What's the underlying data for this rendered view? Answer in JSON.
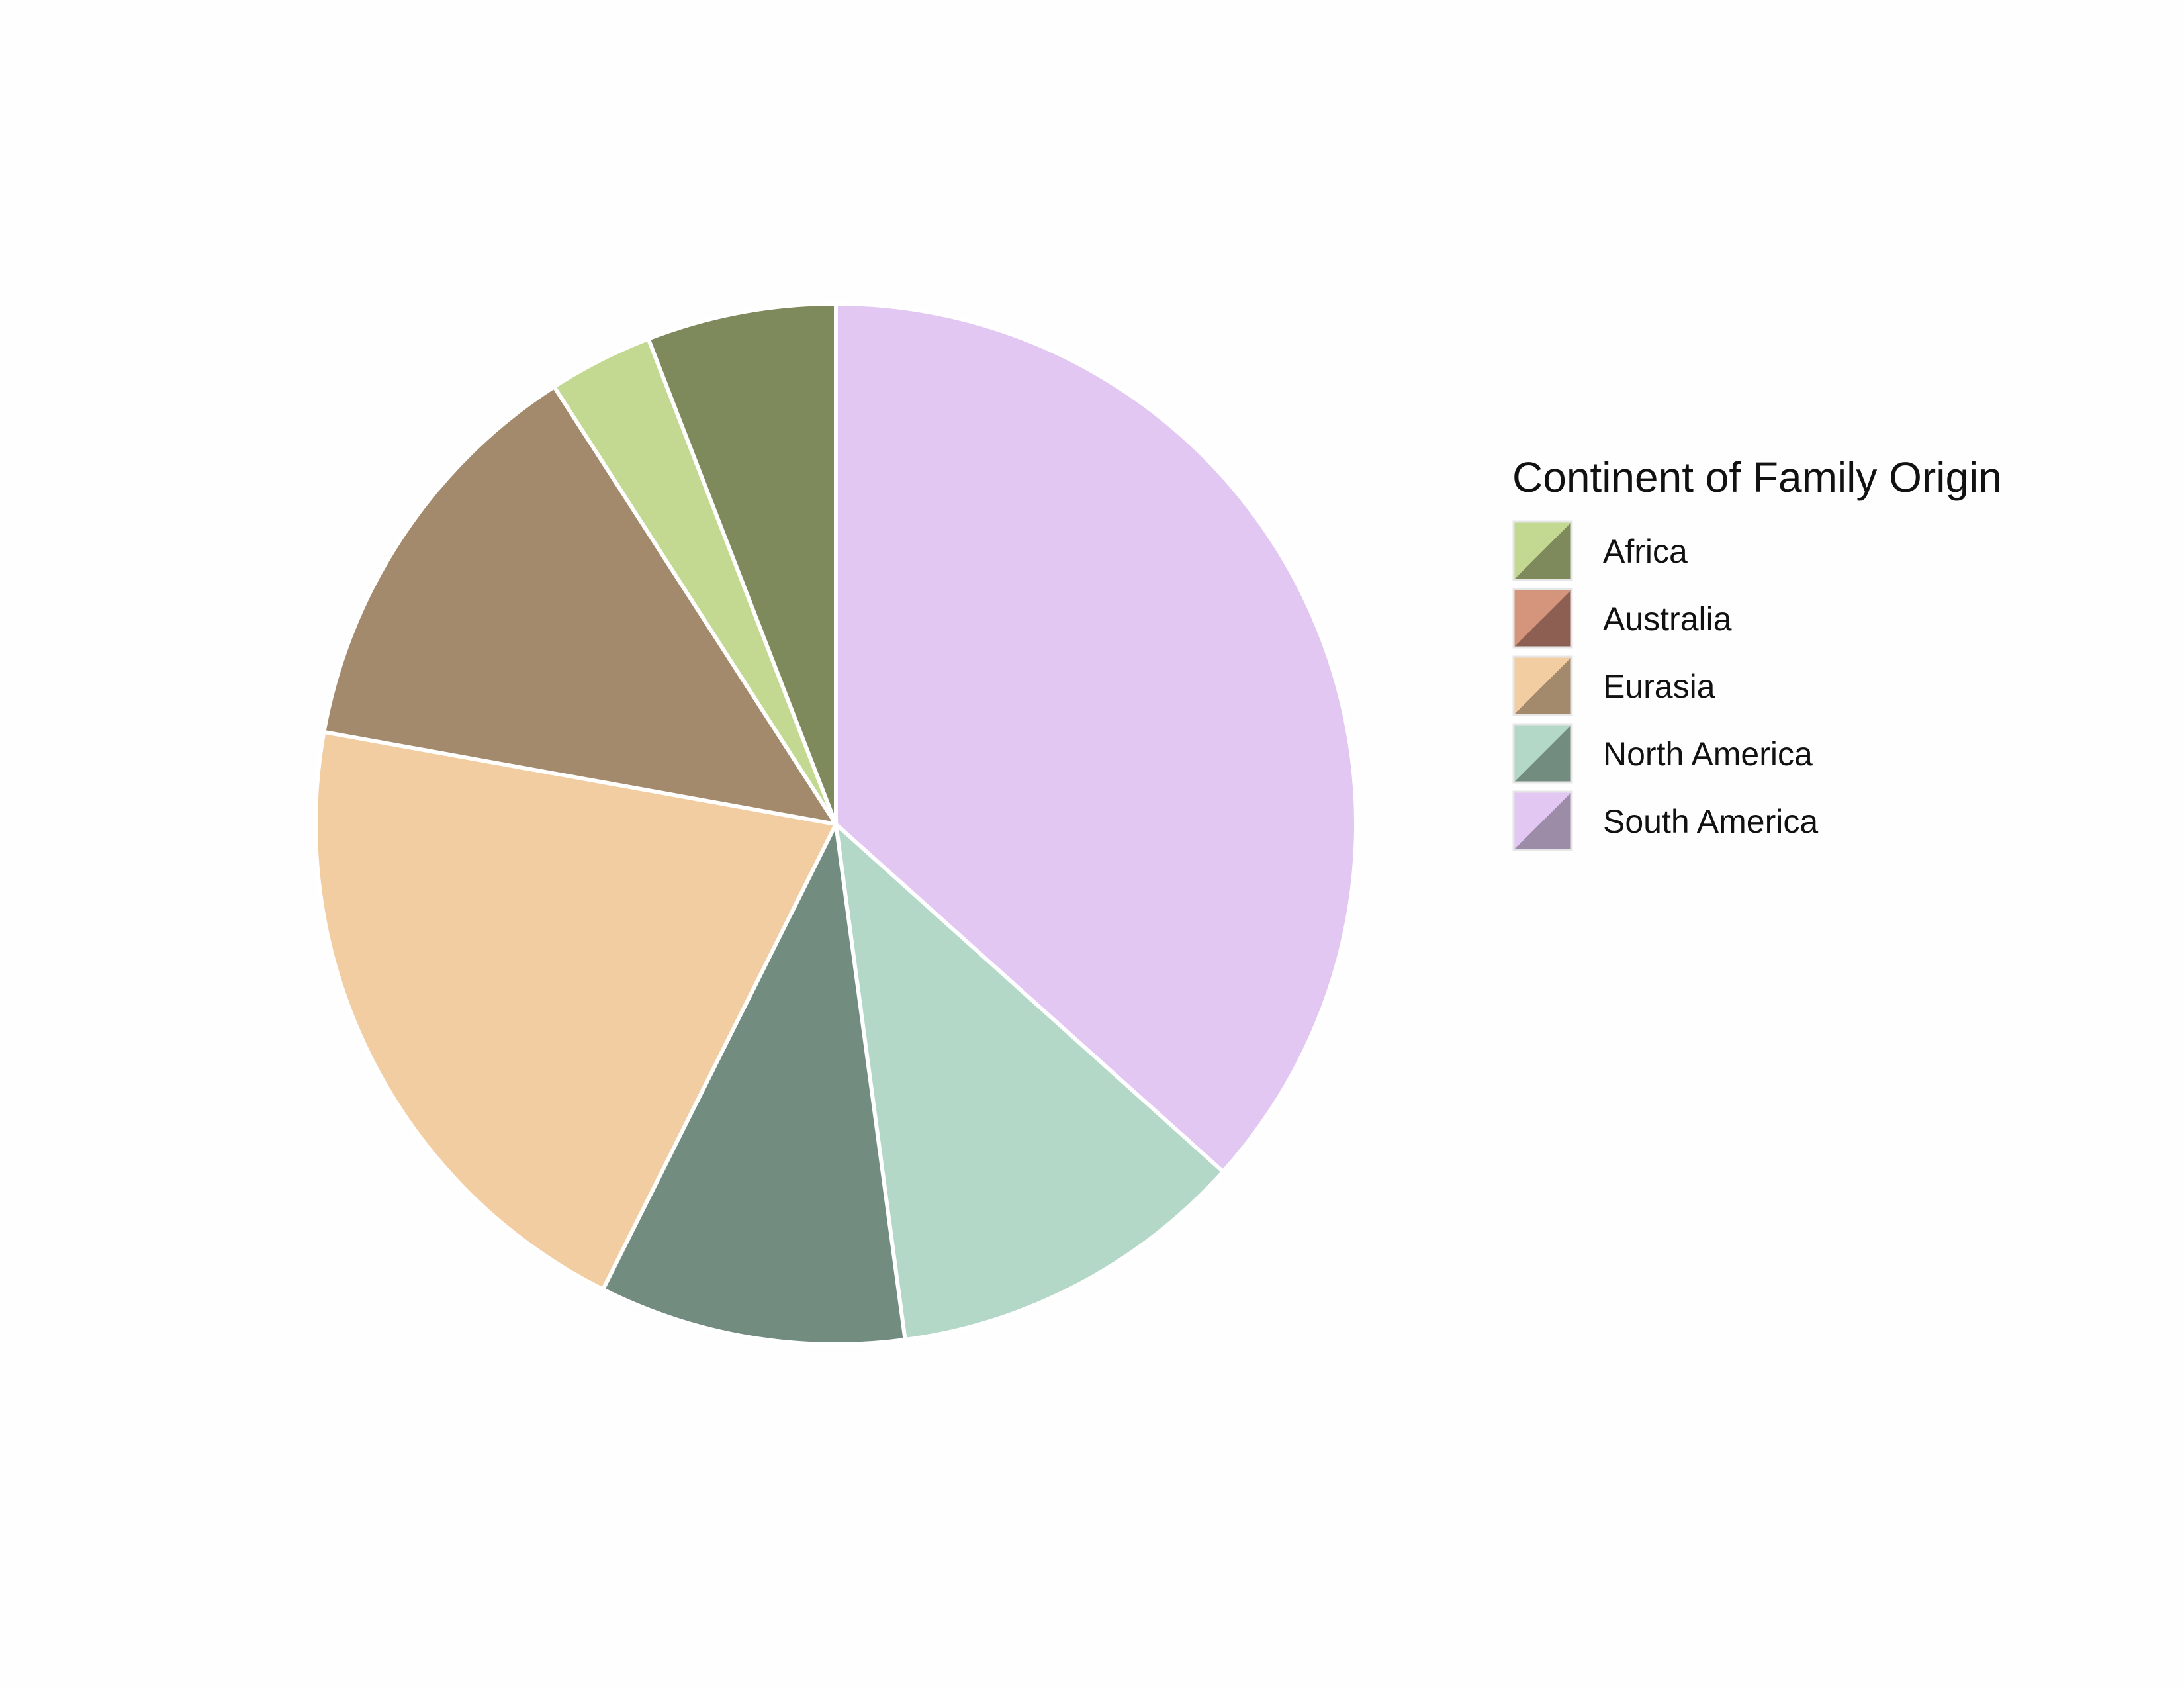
{
  "chart_data": {
    "type": "pie",
    "title": "",
    "legend": {
      "title": "Continent of Family Origin",
      "placement": "right",
      "entries": [
        {
          "label": "Africa",
          "color_light": "#c3d992",
          "color_dark": "#7e8a5c"
        },
        {
          "label": "Australia",
          "color_light": "#d4957c",
          "color_dark": "#8d5f52"
        },
        {
          "label": "Eurasia",
          "color_light": "#f2cda2",
          "color_dark": "#a48a6c"
        },
        {
          "label": "North America",
          "color_light": "#b4d8c8",
          "color_dark": "#728c80"
        },
        {
          "label": "South America",
          "color_light": "#e2c7f2",
          "color_dark": "#9c8ca8"
        }
      ]
    },
    "start_angle_deg": 0,
    "direction": "clockwise",
    "slices": [
      {
        "group": "South America",
        "shade": "light",
        "value": 36.2
      },
      {
        "group": "North America",
        "shade": "light",
        "value": 11.1
      },
      {
        "group": "North America",
        "shade": "dark",
        "value": 9.4
      },
      {
        "group": "Eurasia",
        "shade": "light",
        "value": 20.2
      },
      {
        "group": "Eurasia",
        "shade": "dark",
        "value": 12.9
      },
      {
        "group": "Africa",
        "shade": "light",
        "value": 3.2
      },
      {
        "group": "Africa",
        "shade": "dark",
        "value": 5.8
      }
    ]
  }
}
